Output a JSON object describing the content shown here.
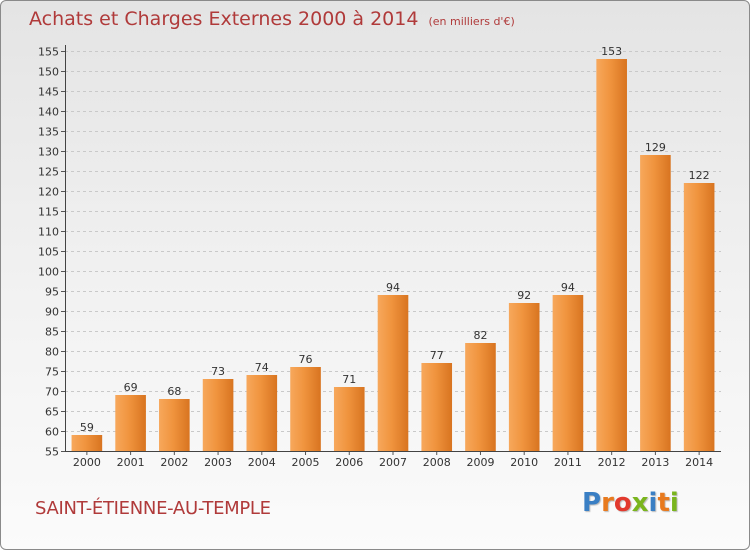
{
  "header": {
    "title": "Achats et Charges Externes 2000 à 2014",
    "unit": "(en milliers d'€)"
  },
  "footer": {
    "commune": "SAINT-ÉTIENNE-AU-TEMPLE",
    "logo_letters": [
      "P",
      "r",
      "o",
      "x",
      "i",
      "t",
      "i"
    ],
    "logo_colors": [
      "#3a7fc4",
      "#e87a1e",
      "#e23a2e",
      "#7ab51d",
      "#3a7fc4",
      "#e87a1e",
      "#7ab51d"
    ]
  },
  "chart_data": {
    "type": "bar",
    "title": "Achats et Charges Externes 2000 à 2014",
    "subtitle": "(en milliers d'€)",
    "xlabel": "",
    "ylabel": "",
    "categories": [
      "2000",
      "2001",
      "2002",
      "2003",
      "2004",
      "2005",
      "2006",
      "2007",
      "2008",
      "2009",
      "2010",
      "2011",
      "2012",
      "2013",
      "2014"
    ],
    "values": [
      59,
      69,
      68,
      73,
      74,
      76,
      71,
      94,
      77,
      82,
      92,
      94,
      153,
      129,
      122
    ],
    "value_labels": [
      "59",
      "69",
      "68",
      "73",
      "74",
      "76",
      "71",
      "94",
      "77",
      "82",
      "92",
      "94",
      "153",
      "129",
      "122"
    ],
    "ylim": [
      55,
      155
    ],
    "yticks": [
      55,
      60,
      65,
      70,
      75,
      80,
      85,
      90,
      95,
      100,
      105,
      110,
      115,
      120,
      125,
      130,
      135,
      140,
      145,
      150,
      155
    ],
    "grid": true,
    "bar_color": "#f0943e",
    "bar_color_light": "#f7a85c",
    "bar_color_dark": "#d87420"
  }
}
